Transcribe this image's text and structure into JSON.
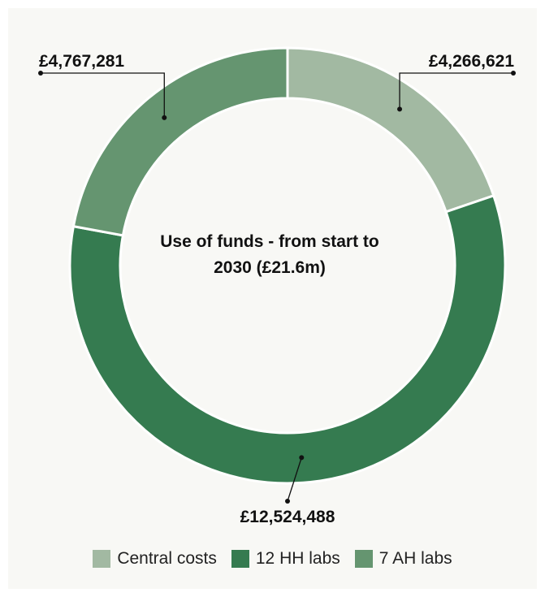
{
  "chart_data": {
    "type": "pie",
    "title": "Use of funds - from start to 2030 (£21.6m)",
    "categories": [
      "Central costs",
      "12 HH labs",
      "7 AH labs"
    ],
    "values": [
      4266621,
      12524488,
      4767281
    ],
    "value_labels": [
      "£4,266,621",
      "£12,524,488",
      "£4,767,281"
    ],
    "colors": [
      "#a2b9a2",
      "#357b50",
      "#659570"
    ],
    "legend_position": "bottom"
  }
}
